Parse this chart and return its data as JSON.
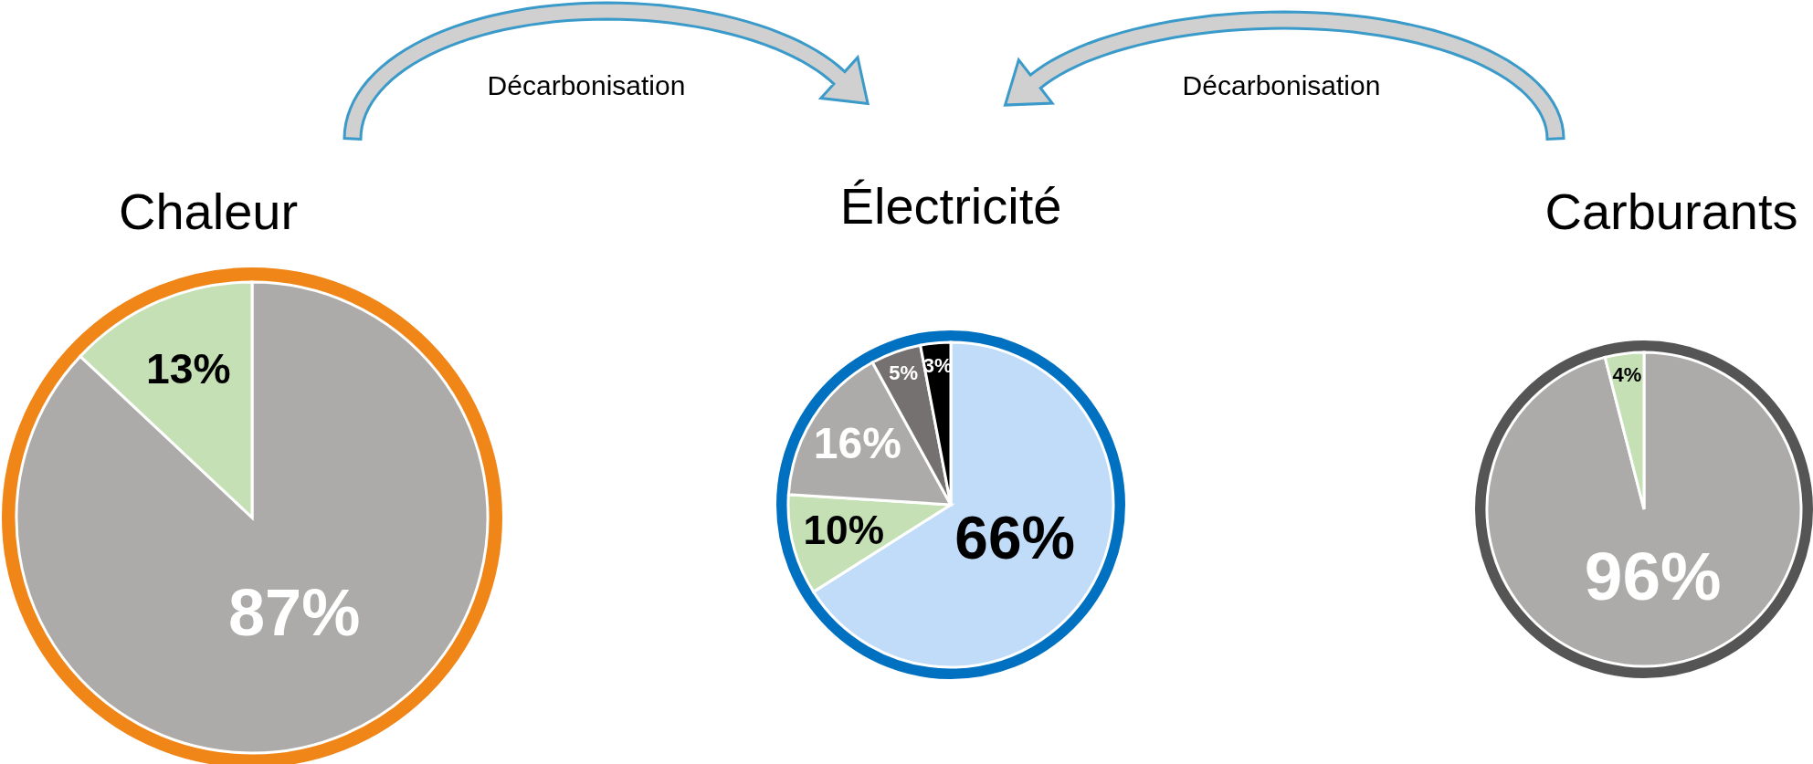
{
  "chart_data": [
    {
      "type": "pie",
      "title": "Chaleur",
      "categories": [
        null,
        null
      ],
      "values": [
        87,
        13
      ],
      "colors": [
        "#adabaa",
        "#c5e0b4"
      ],
      "value_labels": [
        "87%",
        "13%"
      ],
      "annotations": [
        "Décarbonisation"
      ]
    },
    {
      "type": "pie",
      "title": "Électricité",
      "categories": [
        null,
        null,
        null,
        null,
        null
      ],
      "values": [
        66,
        10,
        16,
        5,
        3
      ],
      "colors": [
        "#c0dcf8",
        "#c5e0b4",
        "#adabaa",
        "#767171",
        "#000000"
      ],
      "value_labels": [
        "66%",
        "10%",
        "16%",
        "5%",
        "3%"
      ]
    },
    {
      "type": "pie",
      "title": "Carburants",
      "categories": [
        null,
        null
      ],
      "values": [
        96,
        4
      ],
      "colors": [
        "#adabaa",
        "#c5e0b4"
      ],
      "value_labels": [
        "96%",
        "4%"
      ],
      "annotations": [
        "Décarbonisation"
      ]
    }
  ]
}
